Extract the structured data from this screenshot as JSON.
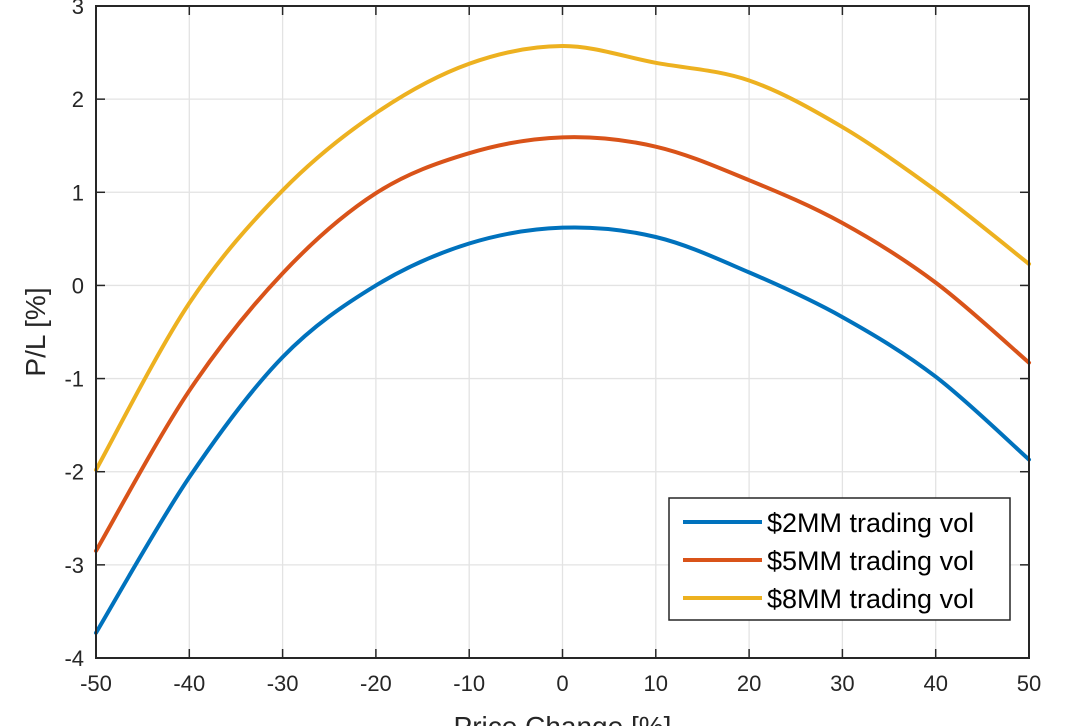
{
  "chart_data": {
    "type": "line",
    "title": "",
    "xlabel": "Price Change [%]",
    "ylabel": "P/L [%]",
    "xlim": [
      -50,
      50
    ],
    "ylim": [
      -4,
      3
    ],
    "xticks": [
      -50,
      -40,
      -30,
      -20,
      -10,
      0,
      10,
      20,
      30,
      40,
      50
    ],
    "yticks": [
      -4,
      -3,
      -2,
      -1,
      0,
      1,
      2,
      3
    ],
    "xtick_labels": [
      "-50",
      "-40",
      "-30",
      "-20",
      "-10",
      "0",
      "10",
      "20",
      "30",
      "40",
      "50"
    ],
    "ytick_labels": [
      "-4",
      "-3",
      "-2",
      "-1",
      "0",
      "1",
      "2",
      "3"
    ],
    "grid": true,
    "legend_position": "bottom-right",
    "x": [
      -50,
      -40,
      -30,
      -20,
      -10,
      0,
      10,
      20,
      30,
      40,
      50
    ],
    "series": [
      {
        "name": "$2MM trading vol",
        "color": "#0072BD",
        "values": [
          -3.73,
          -2.06,
          -0.77,
          0.0,
          0.45,
          0.62,
          0.52,
          0.14,
          -0.34,
          -0.98,
          -1.87
        ]
      },
      {
        "name": "$5MM trading vol",
        "color": "#D95319",
        "values": [
          -2.85,
          -1.13,
          0.13,
          0.99,
          1.42,
          1.59,
          1.49,
          1.13,
          0.67,
          0.03,
          -0.83
        ]
      },
      {
        "name": "$8MM trading vol",
        "color": "#EDB120",
        "values": [
          -1.98,
          -0.19,
          1.02,
          1.85,
          2.38,
          2.57,
          2.39,
          2.2,
          1.7,
          1.02,
          0.23
        ]
      }
    ]
  }
}
